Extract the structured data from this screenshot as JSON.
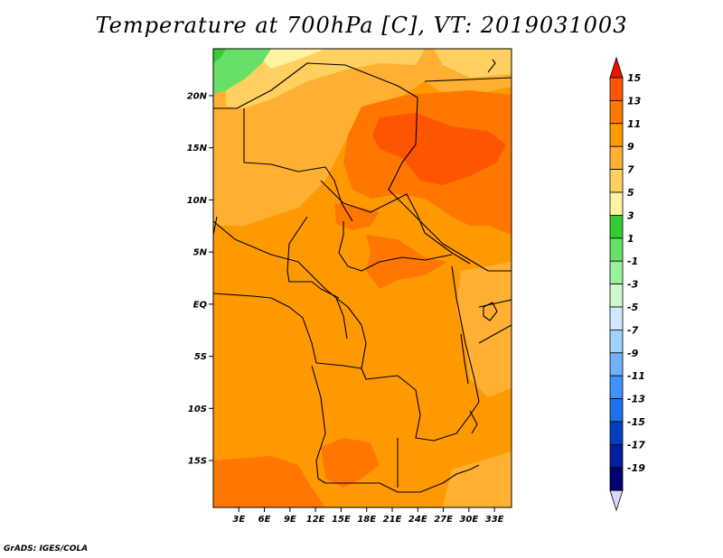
{
  "title": "Temperature at 700hPa [C], VT: 2019031003",
  "credit": "GrADS: IGES/COLA",
  "map": {
    "lat_range": [
      -19.5,
      24.5
    ],
    "lon_range": [
      0,
      35
    ],
    "lat_ticks": [
      {
        "value": 20,
        "label": "20N"
      },
      {
        "value": 15,
        "label": "15N"
      },
      {
        "value": 10,
        "label": "10N"
      },
      {
        "value": 5,
        "label": "5N"
      },
      {
        "value": 0,
        "label": "EQ"
      },
      {
        "value": -5,
        "label": "5S"
      },
      {
        "value": -10,
        "label": "10S"
      },
      {
        "value": -15,
        "label": "15S"
      }
    ],
    "lon_ticks": [
      {
        "value": 3,
        "label": "3E"
      },
      {
        "value": 6,
        "label": "6E"
      },
      {
        "value": 9,
        "label": "9E"
      },
      {
        "value": 12,
        "label": "12E"
      },
      {
        "value": 15,
        "label": "15E"
      },
      {
        "value": 18,
        "label": "18E"
      },
      {
        "value": 21,
        "label": "21E"
      },
      {
        "value": 24,
        "label": "24E"
      },
      {
        "value": 27,
        "label": "27E"
      },
      {
        "value": 30,
        "label": "30E"
      },
      {
        "value": 33,
        "label": "33E"
      }
    ]
  },
  "colorbar": {
    "labels": [
      "15",
      "13",
      "11",
      "9",
      "7",
      "5",
      "3",
      "1",
      "-1",
      "-3",
      "-5",
      "-7",
      "-9",
      "-11",
      "-13",
      "-15",
      "-17",
      "-19"
    ],
    "colors": [
      "#ff3300",
      "#ff5500",
      "#ff7700",
      "#ff9900",
      "#ffb032",
      "#ffd060",
      "#fff2a0",
      "#33cc33",
      "#66e066",
      "#99f099",
      "#d0f8d0",
      "#d0e8ff",
      "#a0d0ff",
      "#70b0ff",
      "#4090ff",
      "#2070e8",
      "#0040c0",
      "#0020a0",
      "#000070",
      "#d8d8f8"
    ],
    "top_arrow_color": "#ee1100",
    "bottom_arrow_color": "#d8d8f8"
  },
  "palette": {
    "base": "#ff9900",
    "light": "#ffb032",
    "lighter": "#ffd060",
    "pale": "#fff2a0",
    "green": "#66e066",
    "green_dark": "#33cc33",
    "dark": "#ff7700",
    "darker": "#ff5500"
  }
}
